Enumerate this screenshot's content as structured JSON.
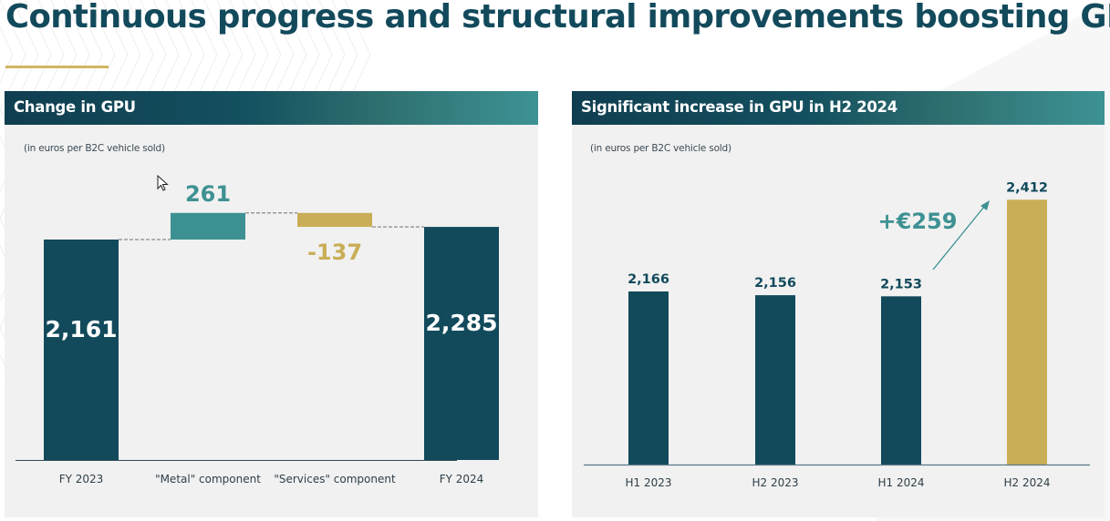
{
  "title": "Continuous progress and structural improvements boosting GPU",
  "colors": {
    "dark_teal": "#124a5c",
    "teal": "#3e9192",
    "gold": "#c9ae57",
    "panel_bg": "#f1f1f1",
    "underline": "#d1b660"
  },
  "chart_data": [
    {
      "type": "bar",
      "subtype": "waterfall",
      "title": "Change in GPU",
      "subtitle": "(in euros per B2C vehicle sold)",
      "categories": [
        "FY 2023",
        "\"Metal\" component",
        "\"Services\" component",
        "FY 2024"
      ],
      "values": [
        2161,
        261,
        -137,
        2285
      ],
      "value_labels": [
        "2,161",
        "261",
        "-137",
        "2,285"
      ],
      "kinds": [
        "total",
        "delta",
        "delta",
        "total"
      ],
      "xlabel": "",
      "ylabel": "",
      "ylim": [
        0,
        2450
      ],
      "grid": false
    },
    {
      "type": "bar",
      "title": "Significant increase in GPU in H2 2024",
      "subtitle": "(in euros per B2C vehicle sold)",
      "categories": [
        "H1 2023",
        "H2 2023",
        "H1 2024",
        "H2 2024"
      ],
      "values": [
        2166,
        2156,
        2153,
        2412
      ],
      "value_labels": [
        "2,166",
        "2,156",
        "2,153",
        "2,412"
      ],
      "highlight": [
        false,
        false,
        false,
        true
      ],
      "annotation": "+€259",
      "xlabel": "",
      "ylabel": "",
      "ylim": [
        1702,
        2460
      ],
      "grid": false
    }
  ]
}
